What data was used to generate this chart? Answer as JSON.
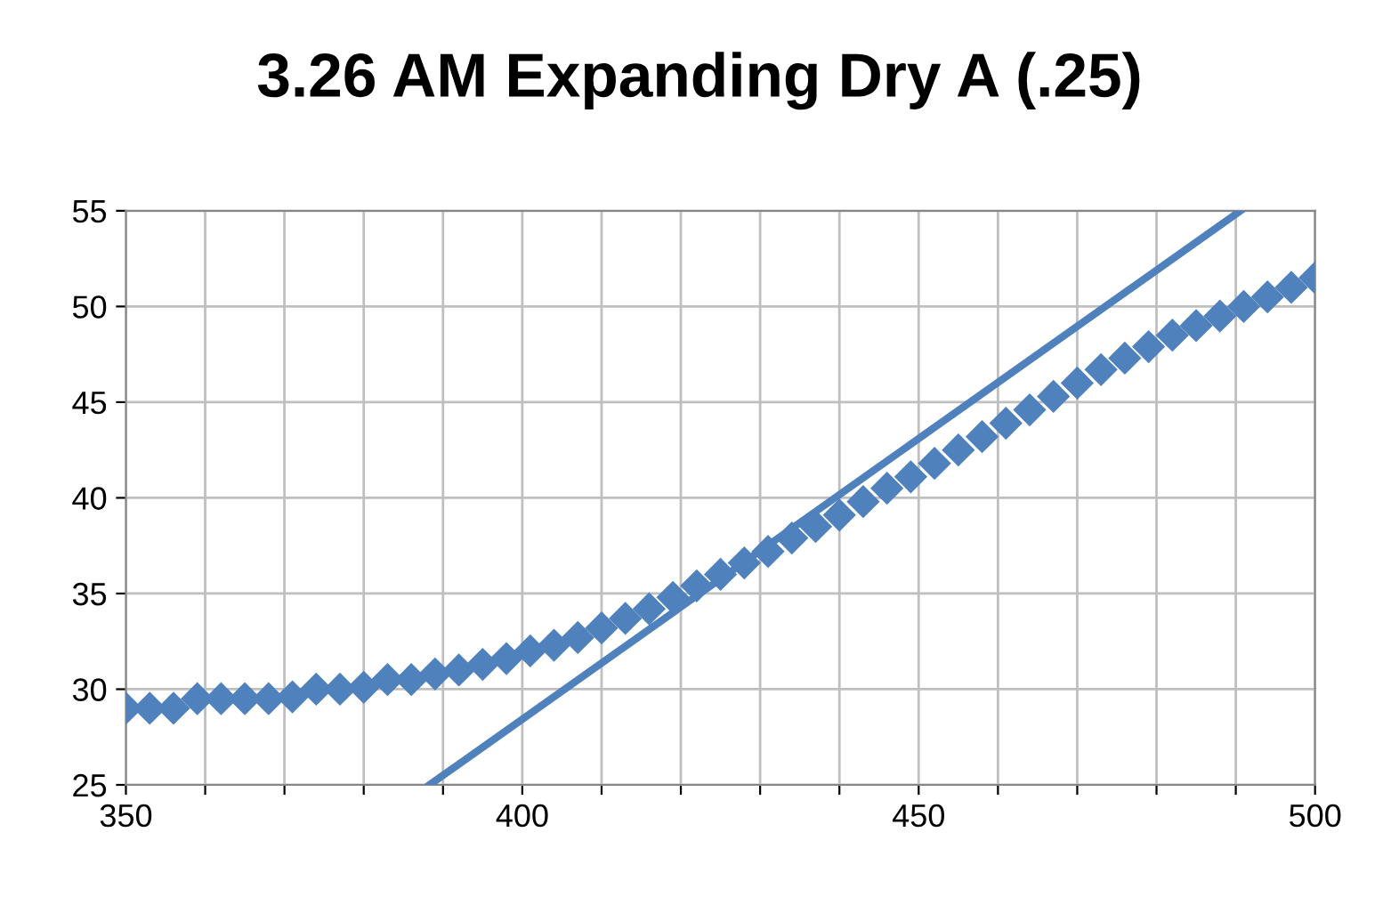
{
  "chart_data": {
    "type": "scatter",
    "title": "3.26 AM Expanding Dry A (.25)",
    "marker": "diamond",
    "grid": true,
    "legend": false,
    "xlim": [
      350,
      500
    ],
    "ylim": [
      25,
      55
    ],
    "xticks": [
      350,
      {
        "value": 360,
        "label": null
      },
      {
        "value": 370,
        "label": null
      },
      {
        "value": 380,
        "label": null
      },
      {
        "value": 390,
        "label": null
      },
      400,
      {
        "value": 410,
        "label": null
      },
      {
        "value": 420,
        "label": null
      },
      {
        "value": 430,
        "label": null
      },
      {
        "value": 440,
        "label": null
      },
      450,
      {
        "value": 460,
        "label": null
      },
      {
        "value": 470,
        "label": null
      },
      {
        "value": 480,
        "label": null
      },
      {
        "value": 490,
        "label": null
      },
      500
    ],
    "yticks": [
      25,
      30,
      35,
      40,
      45,
      50,
      55
    ],
    "series": [
      {
        "color": "#4f81bd",
        "x": [
          350,
          353,
          356,
          359,
          362,
          365,
          368,
          371,
          374,
          377,
          380,
          383,
          386,
          389,
          392,
          395,
          398,
          401,
          404,
          407,
          410,
          413,
          416,
          419,
          422,
          425,
          428,
          431,
          434,
          437,
          440,
          443,
          446,
          449,
          452,
          455,
          458,
          461,
          464,
          467,
          470,
          473,
          476,
          479,
          482,
          485,
          488,
          491,
          494,
          497,
          500
        ],
        "values": [
          29,
          29,
          29,
          29.5,
          29.5,
          29.5,
          29.5,
          29.6,
          30,
          30,
          30.1,
          30.5,
          30.5,
          30.8,
          31,
          31.3,
          31.6,
          32,
          32.3,
          32.7,
          33.2,
          33.7,
          34.2,
          34.8,
          35.4,
          36,
          36.6,
          37.2,
          37.9,
          38.5,
          39.1,
          39.8,
          40.5,
          41.1,
          41.8,
          42.5,
          43.2,
          43.9,
          44.6,
          45.3,
          46,
          46.7,
          47.3,
          47.9,
          48.5,
          49,
          49.5,
          50,
          50.5,
          51,
          51.5
        ]
      },
      {
        "type": "line",
        "color": "#4f81bd",
        "x": [
          388.3,
          490.6
        ],
        "values": [
          25,
          55
        ],
        "marker": "none"
      }
    ]
  }
}
